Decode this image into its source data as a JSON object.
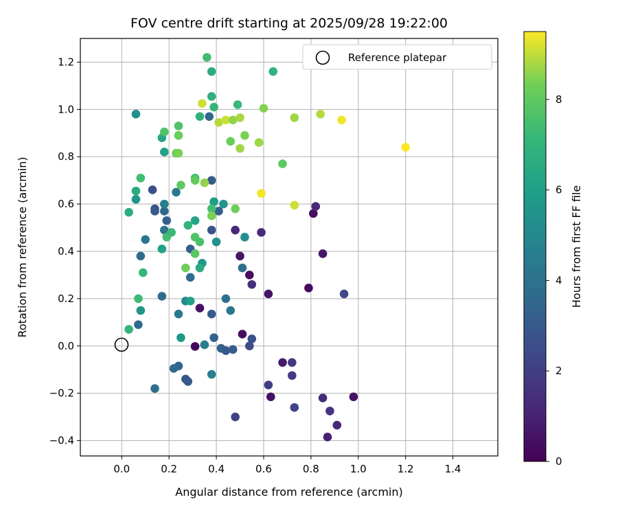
{
  "chart_data": {
    "type": "scatter",
    "title": "FOV centre drift starting at 2025/09/28 19:22:00",
    "xlabel": "Angular distance from reference (arcmin)",
    "ylabel": "Rotation from reference (arcmin)",
    "xlim": [
      -0.175,
      1.59
    ],
    "ylim": [
      -0.465,
      1.3
    ],
    "xticks": [
      0.0,
      0.2,
      0.4,
      0.6,
      0.8,
      1.0,
      1.2,
      1.4
    ],
    "xtick_labels": [
      "0.0",
      "0.2",
      "0.4",
      "0.6",
      "0.8",
      "1.0",
      "1.2",
      "1.4"
    ],
    "yticks": [
      -0.4,
      -0.2,
      0.0,
      0.2,
      0.4,
      0.6,
      0.8,
      1.0,
      1.2
    ],
    "ytick_labels": [
      "−0.4",
      "−0.2",
      "0.0",
      "0.2",
      "0.4",
      "0.6",
      "0.8",
      "1.0",
      "1.2"
    ],
    "grid": true,
    "legend": {
      "position": "top-right",
      "entries": [
        "Reference platepar"
      ]
    },
    "reference_point": {
      "x": 0.0,
      "y": 0.0,
      "label": "Reference platepar"
    },
    "colorbar": {
      "label": "Hours from first FF file",
      "colormap": "viridis",
      "range": [
        0,
        9.5
      ],
      "ticks": [
        0,
        2,
        4,
        6,
        8
      ],
      "tick_labels": [
        "0",
        "2",
        "4",
        "6",
        "8"
      ]
    },
    "points": [
      [
        0.31,
        -0.002,
        0.2
      ],
      [
        0.33,
        0.16,
        0.5
      ],
      [
        0.51,
        0.05,
        0.4
      ],
      [
        0.5,
        0.38,
        0.6
      ],
      [
        0.54,
        0.3,
        0.4
      ],
      [
        0.62,
        0.22,
        0.6
      ],
      [
        0.63,
        -0.215,
        0.5
      ],
      [
        0.68,
        -0.07,
        0.8
      ],
      [
        0.79,
        0.245,
        0.3
      ],
      [
        0.81,
        0.56,
        0.4
      ],
      [
        0.85,
        0.39,
        0.6
      ],
      [
        0.98,
        -0.215,
        0.5
      ],
      [
        0.82,
        0.59,
        1.2
      ],
      [
        0.87,
        -0.385,
        1.0
      ],
      [
        0.91,
        -0.335,
        1.2
      ],
      [
        0.88,
        -0.275,
        1.6
      ],
      [
        0.85,
        -0.22,
        1.3
      ],
      [
        0.72,
        -0.07,
        1.7
      ],
      [
        0.72,
        -0.125,
        1.9
      ],
      [
        0.73,
        -0.26,
        2.2
      ],
      [
        0.94,
        0.22,
        2.3
      ],
      [
        0.62,
        -0.165,
        2.0
      ],
      [
        0.59,
        0.48,
        1.3
      ],
      [
        0.48,
        0.49,
        1.2
      ],
      [
        0.55,
        0.26,
        1.5
      ],
      [
        0.48,
        -0.3,
        2.1
      ],
      [
        0.54,
        0.0,
        2.5
      ],
      [
        0.55,
        0.03,
        2.7
      ],
      [
        0.47,
        -0.015,
        3.1
      ],
      [
        0.44,
        -0.02,
        2.9
      ],
      [
        0.42,
        -0.01,
        3.2
      ],
      [
        0.39,
        0.035,
        3.3
      ],
      [
        0.38,
        0.135,
        3.1
      ],
      [
        0.38,
        0.49,
        2.8
      ],
      [
        0.38,
        0.7,
        3.1
      ],
      [
        0.41,
        0.57,
        3.3
      ],
      [
        0.13,
        0.66,
        2.6
      ],
      [
        0.14,
        0.58,
        2.8
      ],
      [
        0.14,
        0.57,
        3.0
      ],
      [
        0.19,
        0.53,
        3.2
      ],
      [
        0.18,
        0.57,
        3.5
      ],
      [
        0.29,
        0.41,
        3.2
      ],
      [
        0.08,
        0.38,
        3.7
      ],
      [
        0.07,
        0.09,
        3.7
      ],
      [
        0.17,
        0.21,
        3.7
      ],
      [
        0.28,
        -0.15,
        2.9
      ],
      [
        0.27,
        -0.14,
        3.0
      ],
      [
        0.24,
        -0.085,
        3.4
      ],
      [
        0.22,
        -0.095,
        3.6
      ],
      [
        0.14,
        -0.18,
        3.9
      ],
      [
        0.29,
        0.29,
        3.8
      ],
      [
        0.44,
        0.2,
        3.9
      ],
      [
        0.46,
        0.15,
        4.3
      ],
      [
        0.51,
        0.33,
        3.9
      ],
      [
        0.1,
        0.45,
        4.2
      ],
      [
        0.23,
        0.65,
        4.3
      ],
      [
        0.37,
        0.97,
        3.6
      ],
      [
        0.18,
        0.49,
        4.1
      ],
      [
        0.24,
        0.135,
        4.4
      ],
      [
        0.35,
        0.005,
        4.5
      ],
      [
        0.38,
        -0.12,
        4.6
      ],
      [
        0.52,
        0.46,
        5.3
      ],
      [
        0.18,
        0.6,
        4.6
      ],
      [
        0.43,
        0.6,
        5.5
      ],
      [
        0.08,
        0.15,
        5.5
      ],
      [
        0.25,
        0.035,
        5.7
      ],
      [
        0.06,
        0.98,
        5.3
      ],
      [
        0.18,
        0.82,
        6.1
      ],
      [
        0.17,
        0.88,
        6.3
      ],
      [
        0.06,
        0.62,
        5.6
      ],
      [
        0.39,
        0.61,
        5.9
      ],
      [
        0.4,
        0.44,
        5.4
      ],
      [
        0.34,
        0.35,
        5.7
      ],
      [
        0.27,
        0.19,
        5.0
      ],
      [
        0.29,
        0.19,
        6.1
      ],
      [
        0.31,
        0.53,
        6.2
      ],
      [
        0.17,
        0.41,
        6.1
      ],
      [
        0.33,
        0.33,
        6.5
      ],
      [
        0.03,
        0.565,
        6.7
      ],
      [
        0.06,
        0.655,
        6.5
      ],
      [
        0.03,
        0.07,
        7.0
      ],
      [
        0.07,
        0.2,
        7.3
      ],
      [
        0.09,
        0.31,
        7.1
      ],
      [
        0.08,
        0.71,
        7.4
      ],
      [
        0.19,
        0.46,
        7.5
      ],
      [
        0.21,
        0.48,
        7.2
      ],
      [
        0.38,
        1.16,
        6.6
      ],
      [
        0.38,
        1.055,
        6.8
      ],
      [
        0.39,
        1.01,
        7.1
      ],
      [
        0.33,
        0.97,
        6.9
      ],
      [
        0.49,
        1.02,
        7.2
      ],
      [
        0.36,
        1.22,
        7.4
      ],
      [
        0.64,
        1.16,
        6.9
      ],
      [
        0.31,
        0.71,
        7.4
      ],
      [
        0.38,
        0.58,
        7.4
      ],
      [
        0.28,
        0.51,
        7.0
      ],
      [
        0.31,
        0.46,
        7.7
      ],
      [
        0.33,
        0.44,
        7.6
      ],
      [
        0.18,
        0.905,
        7.7
      ],
      [
        0.24,
        0.93,
        7.7
      ],
      [
        0.24,
        0.89,
        8.2
      ],
      [
        0.23,
        0.815,
        8.2
      ],
      [
        0.24,
        0.815,
        8.4
      ],
      [
        0.25,
        0.68,
        8.0
      ],
      [
        0.27,
        0.33,
        8.3
      ],
      [
        0.31,
        0.39,
        7.9
      ],
      [
        0.38,
        0.55,
        8.4
      ],
      [
        0.31,
        0.7,
        8.1
      ],
      [
        0.35,
        0.69,
        8.6
      ],
      [
        0.48,
        0.58,
        8.3
      ],
      [
        0.68,
        0.77,
        8.0
      ],
      [
        0.46,
        0.865,
        8.2
      ],
      [
        0.5,
        0.835,
        8.7
      ],
      [
        0.52,
        0.89,
        8.4
      ],
      [
        0.58,
        0.86,
        8.7
      ],
      [
        0.41,
        0.945,
        8.9
      ],
      [
        0.44,
        0.955,
        9.1
      ],
      [
        0.47,
        0.955,
        8.6
      ],
      [
        0.5,
        0.965,
        8.8
      ],
      [
        0.6,
        1.005,
        8.5
      ],
      [
        0.34,
        1.025,
        9.1
      ],
      [
        0.73,
        0.965,
        8.7
      ],
      [
        0.84,
        0.98,
        8.9
      ],
      [
        0.73,
        0.595,
        9.1
      ],
      [
        0.59,
        0.645,
        9.4
      ],
      [
        0.93,
        0.955,
        9.4
      ],
      [
        1.2,
        0.84,
        9.5
      ]
    ]
  }
}
